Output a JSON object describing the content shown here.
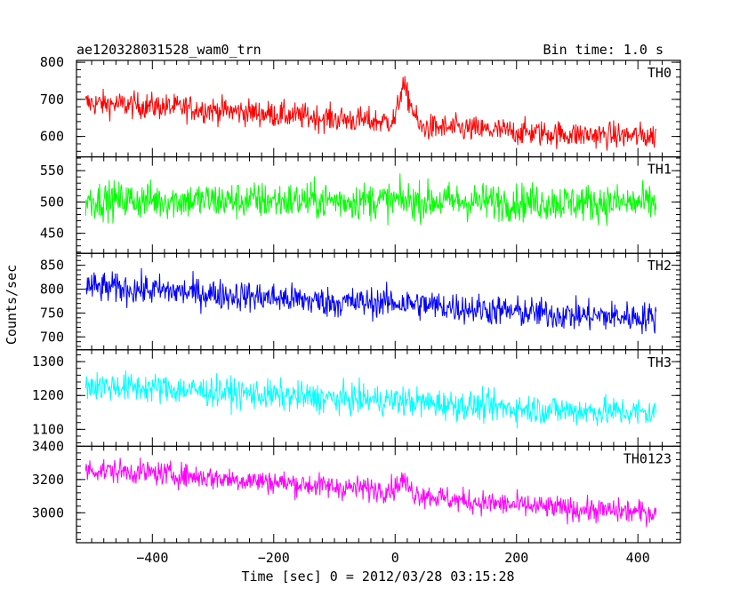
{
  "chart_data": {
    "type": "line",
    "title": "ae120328031528_wam0_trn",
    "bin_time_label": "Bin time: 1.0 s",
    "xlabel": "Time [sec] 0 = 2012/03/28 03:15:28",
    "ylabel": "Counts/sec",
    "x_range": [
      -510,
      430
    ],
    "xlim": [
      -525,
      470
    ],
    "x_ticks": [
      -400,
      -200,
      0,
      200,
      400
    ],
    "x_tick_labels": [
      "−400",
      "−200",
      "0",
      "200",
      "400"
    ],
    "grid": false,
    "panels": [
      {
        "name": "TH0",
        "color": "#ff0000",
        "ylim": [
          545,
          805
        ],
        "y_ticks": [
          600,
          700,
          800
        ],
        "y_tick_labels": [
          "600",
          "700",
          "800"
        ],
        "trend": [
          [
            -510,
            690
          ],
          [
            -400,
            682
          ],
          [
            -300,
            672
          ],
          [
            -200,
            660
          ],
          [
            -100,
            648
          ],
          [
            -20,
            640
          ],
          [
            0,
            645
          ],
          [
            12,
            740
          ],
          [
            25,
            690
          ],
          [
            40,
            625
          ],
          [
            100,
            622
          ],
          [
            200,
            612
          ],
          [
            300,
            605
          ],
          [
            430,
            600
          ]
        ],
        "noise_sigma": 32
      },
      {
        "name": "TH1",
        "color": "#00ff00",
        "ylim": [
          418,
          572
        ],
        "y_ticks": [
          450,
          500,
          550
        ],
        "y_tick_labels": [
          "450",
          "500",
          "550"
        ],
        "trend": [
          [
            -510,
            503
          ],
          [
            -200,
            502
          ],
          [
            0,
            502
          ],
          [
            200,
            500
          ],
          [
            430,
            498
          ]
        ],
        "noise_sigma": 27
      },
      {
        "name": "TH2",
        "color": "#0000ff",
        "ylim": [
          673,
          875
        ],
        "y_ticks": [
          700,
          750,
          800,
          850
        ],
        "y_tick_labels": [
          "700",
          "750",
          "800",
          "850"
        ],
        "trend": [
          [
            -510,
            805
          ],
          [
            -400,
            798
          ],
          [
            -300,
            790
          ],
          [
            -200,
            782
          ],
          [
            -100,
            772
          ],
          [
            0,
            772
          ],
          [
            100,
            762
          ],
          [
            200,
            752
          ],
          [
            300,
            745
          ],
          [
            430,
            740
          ]
        ],
        "noise_sigma": 29
      },
      {
        "name": "TH3",
        "color": "#00ffff",
        "ylim": [
          1050,
          1335
        ],
        "y_ticks": [
          1100,
          1200,
          1300
        ],
        "y_tick_labels": [
          "1100",
          "1200",
          "1300"
        ],
        "trend": [
          [
            -510,
            1230
          ],
          [
            -400,
            1222
          ],
          [
            -300,
            1212
          ],
          [
            -200,
            1200
          ],
          [
            -100,
            1190
          ],
          [
            0,
            1185
          ],
          [
            100,
            1172
          ],
          [
            200,
            1162
          ],
          [
            300,
            1155
          ],
          [
            430,
            1148
          ]
        ],
        "noise_sigma": 40
      },
      {
        "name": "TH0123",
        "color": "#ff00ff",
        "ylim": [
          2820,
          3400
        ],
        "y_ticks": [
          3000,
          3200,
          3400
        ],
        "y_tick_labels": [
          "3000",
          "3200",
          "3400"
        ],
        "trend": [
          [
            -510,
            3260
          ],
          [
            -400,
            3240
          ],
          [
            -300,
            3210
          ],
          [
            -200,
            3185
          ],
          [
            -100,
            3155
          ],
          [
            -20,
            3140
          ],
          [
            0,
            3150
          ],
          [
            12,
            3200
          ],
          [
            30,
            3120
          ],
          [
            100,
            3075
          ],
          [
            200,
            3045
          ],
          [
            300,
            3020
          ],
          [
            430,
            3000
          ]
        ],
        "noise_sigma": 65
      }
    ]
  }
}
